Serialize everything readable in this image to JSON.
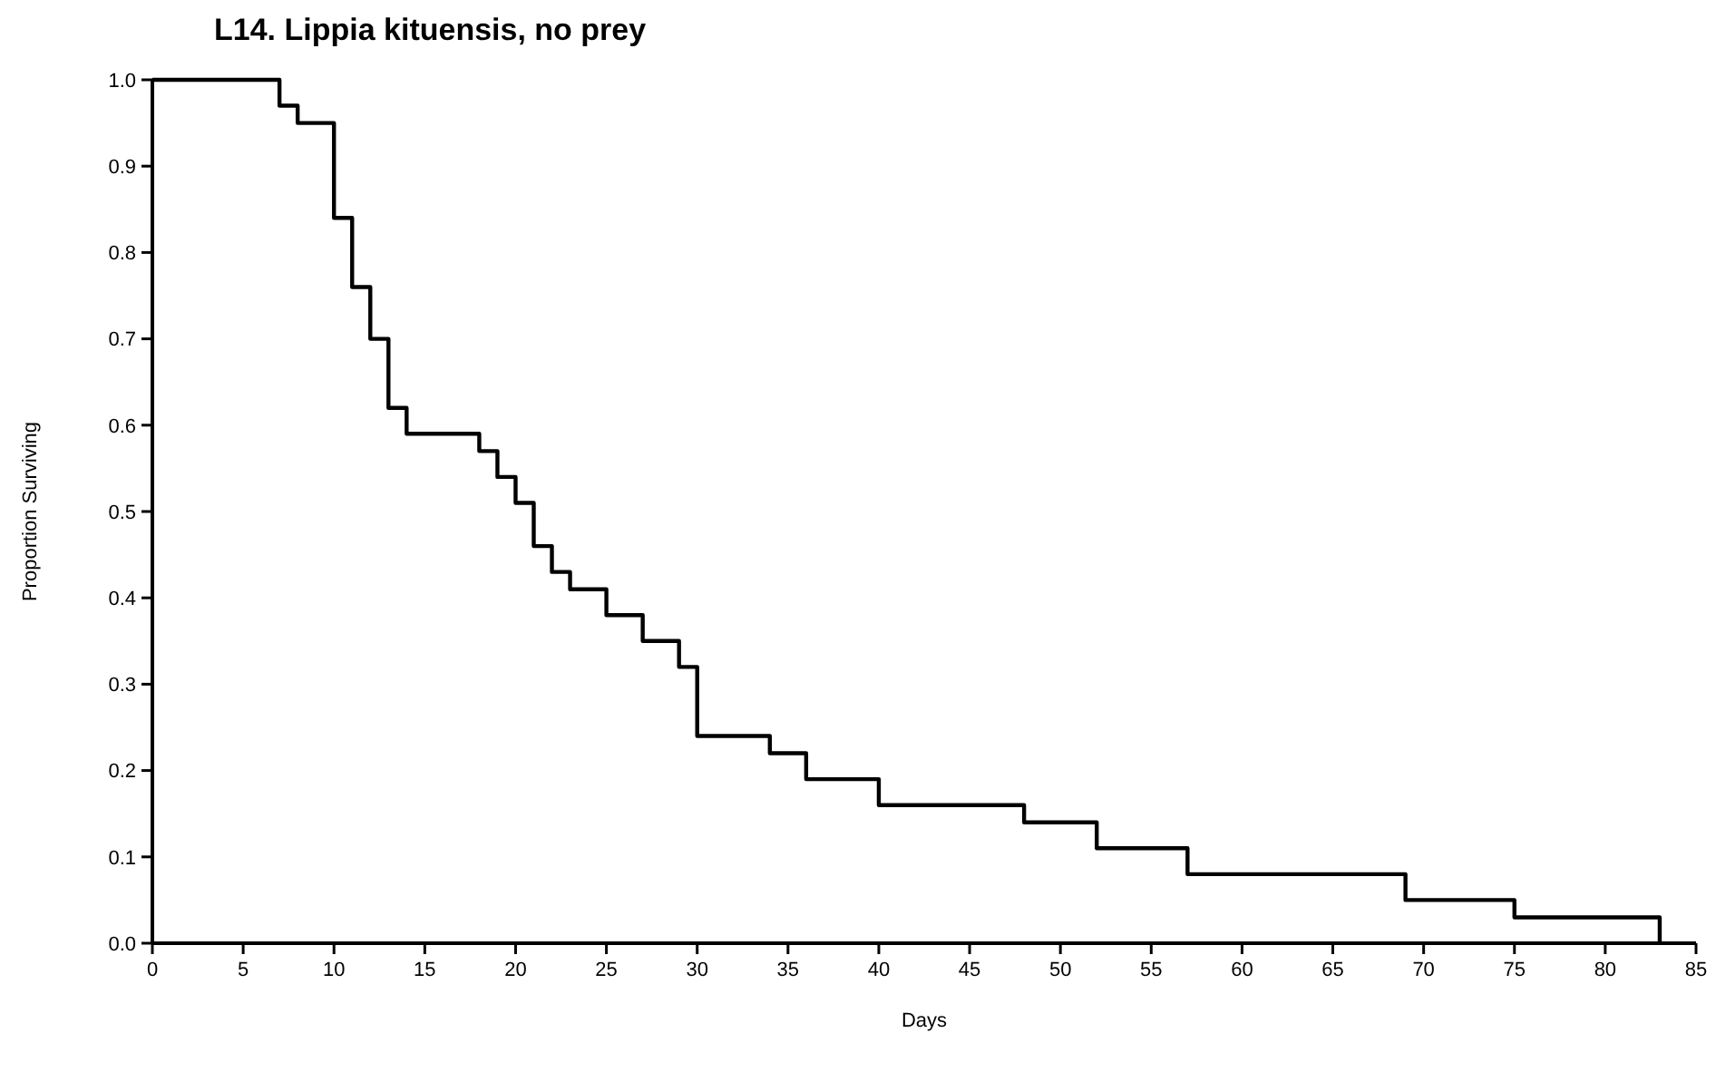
{
  "chart_data": {
    "type": "step",
    "title": "L14. Lippia kituensis, no prey",
    "xlabel": "Days",
    "ylabel": "Proportion Surviving",
    "series": [
      {
        "color": "#000000",
        "x": [
          0,
          7,
          8,
          10,
          11,
          12,
          13,
          14,
          18,
          19,
          20,
          21,
          22,
          23,
          25,
          27,
          29,
          30,
          34,
          36,
          40,
          48,
          52,
          57,
          69,
          75,
          83
        ],
        "values": [
          1.0,
          0.97,
          0.95,
          0.84,
          0.76,
          0.7,
          0.62,
          0.59,
          0.57,
          0.54,
          0.51,
          0.46,
          0.43,
          0.41,
          0.38,
          0.35,
          0.32,
          0.24,
          0.22,
          0.19,
          0.16,
          0.14,
          0.11,
          0.08,
          0.05,
          0.03,
          0.0
        ]
      }
    ],
    "xlim": [
      0,
      85
    ],
    "xticks": [
      0,
      5,
      10,
      15,
      20,
      25,
      30,
      35,
      40,
      45,
      50,
      55,
      60,
      65,
      70,
      75,
      80,
      85
    ],
    "ylim": [
      0,
      1
    ],
    "yticks": [
      {
        "value": 0,
        "label": "0.0"
      },
      0.1,
      0.2,
      0.3,
      0.4,
      0.5,
      0.6,
      0.7,
      0.8,
      0.9,
      {
        "value": 1,
        "label": "1.0"
      }
    ],
    "grid": false,
    "marker": "none",
    "line_style": "solid"
  }
}
